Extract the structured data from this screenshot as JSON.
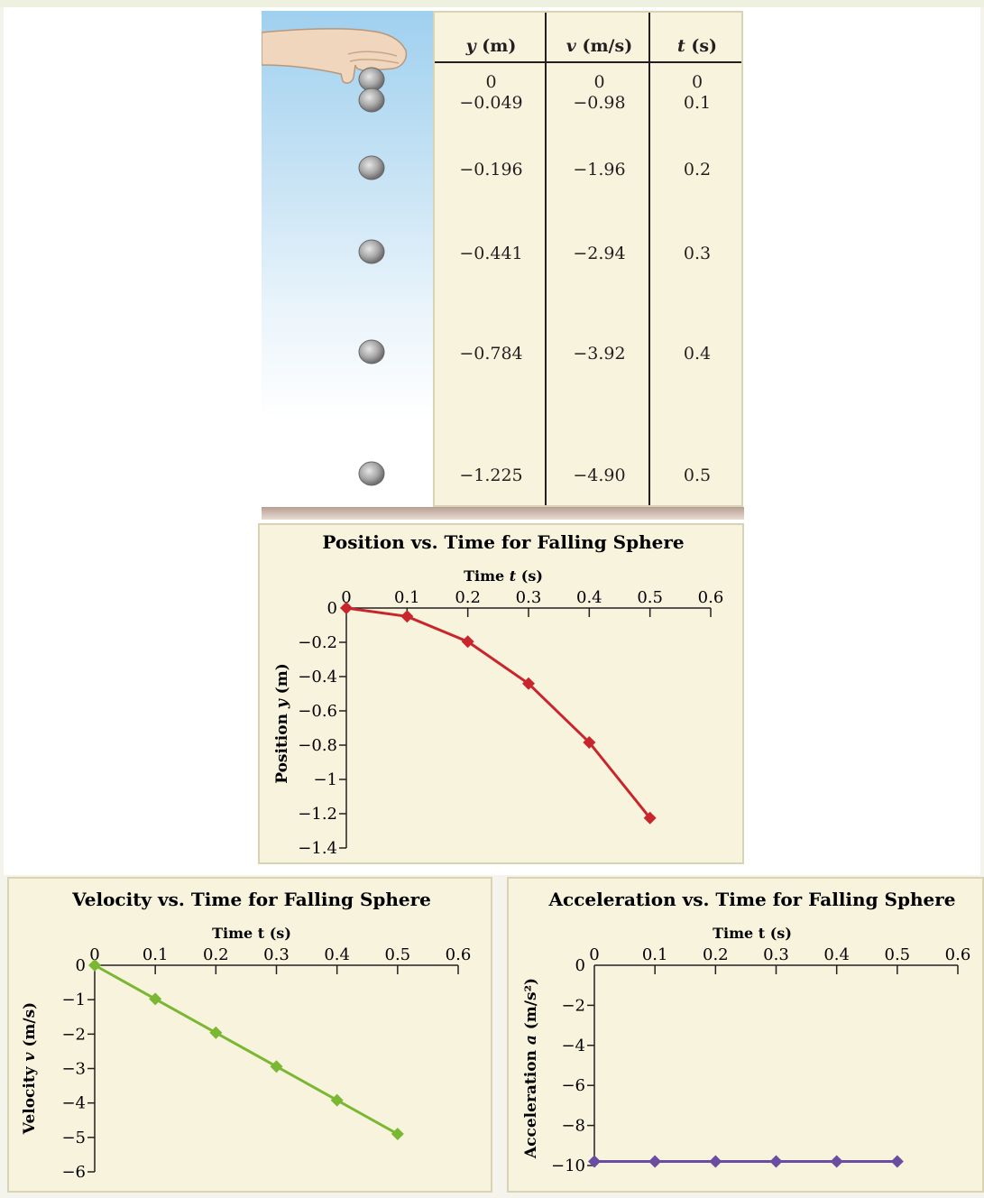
{
  "table": {
    "headers": [
      {
        "var": "y",
        "unit": " (m)"
      },
      {
        "var": "v",
        "unit": " (m/s)"
      },
      {
        "var": "t",
        "unit": " (s)"
      }
    ],
    "y": [
      "0",
      "−0.049",
      "−0.196",
      "−0.441",
      "−0.784",
      "−1.225"
    ],
    "v": [
      "0",
      "−0.98",
      "−1.96",
      "−2.94",
      "−3.92",
      "−4.90"
    ],
    "t": [
      "0",
      "0.1",
      "0.2",
      "0.3",
      "0.4",
      "0.5"
    ]
  },
  "scene": {
    "hand_icon": "hand-icon",
    "sphere_icon": "sphere-icon",
    "sphere_count": 6
  },
  "chart_data": [
    {
      "type": "line",
      "title": "Position vs. Time for Falling Sphere",
      "xlabel": "Time t (s)",
      "xlabel_var": "t",
      "ylabel": "Position y (m)",
      "ylabel_var": "y",
      "x": [
        0,
        0.1,
        0.2,
        0.3,
        0.4,
        0.5
      ],
      "series": [
        {
          "values": [
            0,
            -0.049,
            -0.196,
            -0.441,
            -0.784,
            -1.225
          ],
          "color": "#c8262c"
        }
      ],
      "xlim": [
        0,
        0.6
      ],
      "ylim": [
        -1.4,
        0
      ],
      "xticks": [
        "0",
        "0.1",
        "0.2",
        "0.3",
        "0.4",
        "0.5",
        "0.6"
      ],
      "yticks": [
        "0",
        "−0.2",
        "−0.4",
        "−0.6",
        "−0.8",
        "−1",
        "−1.2",
        "−1.4"
      ],
      "grid": false
    },
    {
      "type": "line",
      "title": "Velocity vs. Time for Falling Sphere",
      "xlabel": "Time t (s)",
      "ylabel": "Velocity v (m/s)",
      "ylabel_var": "v",
      "x": [
        0,
        0.1,
        0.2,
        0.3,
        0.4,
        0.5
      ],
      "series": [
        {
          "values": [
            0,
            -0.98,
            -1.96,
            -2.94,
            -3.92,
            -4.9
          ],
          "color": "#7ab833"
        }
      ],
      "xlim": [
        0,
        0.6
      ],
      "ylim": [
        -6,
        0
      ],
      "xticks": [
        "0",
        "0.1",
        "0.2",
        "0.3",
        "0.4",
        "0.5",
        "0.6"
      ],
      "yticks": [
        "0",
        "−1",
        "−2",
        "−3",
        "−4",
        "−5",
        "−6"
      ],
      "grid": false
    },
    {
      "type": "line",
      "title": "Acceleration vs. Time for Falling Sphere",
      "xlabel": "Time t (s)",
      "ylabel": "Acceleration a (m/s²)",
      "ylabel_var": "a",
      "x": [
        0,
        0.1,
        0.2,
        0.3,
        0.4,
        0.5
      ],
      "series": [
        {
          "values": [
            -9.8,
            -9.8,
            -9.8,
            -9.8,
            -9.8,
            -9.8
          ],
          "color": "#6a4ca0"
        }
      ],
      "xlim": [
        0,
        0.6
      ],
      "ylim": [
        -10,
        0
      ],
      "xticks": [
        "0",
        "0.1",
        "0.2",
        "0.3",
        "0.4",
        "0.5",
        "0.6"
      ],
      "yticks": [
        "0",
        "−2",
        "−4",
        "−6",
        "−8",
        "−10"
      ],
      "grid": false
    }
  ]
}
